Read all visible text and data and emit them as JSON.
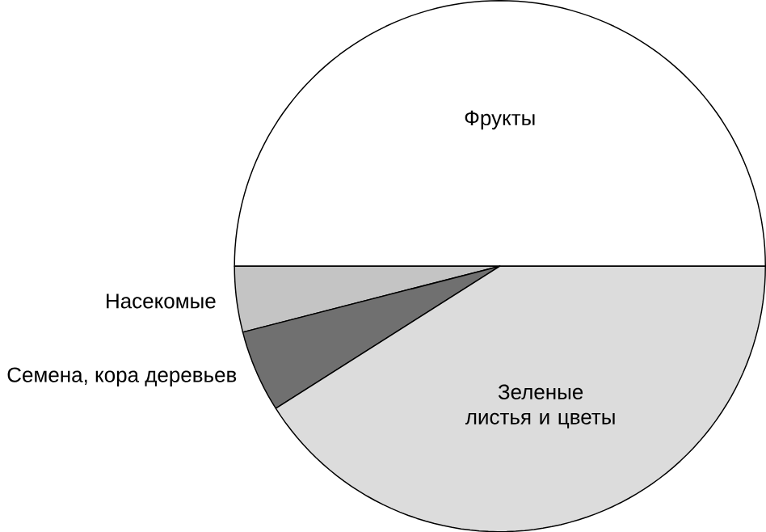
{
  "chart_data": {
    "type": "pie",
    "categories": [
      "Фрукты",
      "Насекомые",
      "Семена, кора деревьев",
      "Зеленые листья и цветы"
    ],
    "values": [
      50,
      4,
      5,
      41
    ],
    "colors": [
      "#ffffff",
      "#c4c4c4",
      "#707070",
      "#dcdcdc"
    ]
  }
}
